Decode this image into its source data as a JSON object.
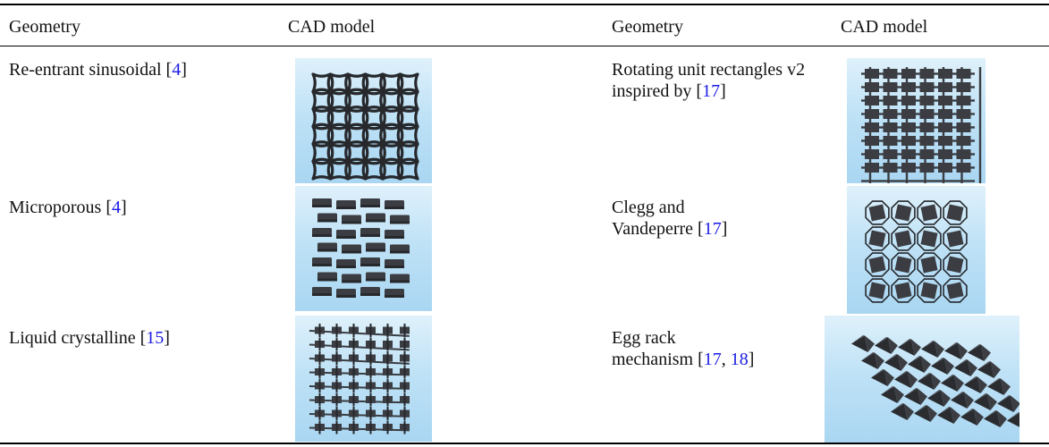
{
  "header": {
    "col1": "Geometry",
    "col2": "CAD model",
    "col3": "Geometry",
    "col4": "CAD model"
  },
  "rows": [
    {
      "left": {
        "name": "Re-entrant sinusoidal [",
        "cites": [
          "4"
        ],
        "end": "]",
        "image": "re-entrant-sinusoidal-lattice"
      },
      "right": {
        "name": "Rotating unit rectangles v2 inspired by [",
        "cites": [
          "17"
        ],
        "end": "]",
        "image": "rotating-rectangles-grid"
      }
    },
    {
      "left": {
        "name": "Microporous [",
        "cites": [
          "4"
        ],
        "end": "]",
        "image": "microporous-blocks"
      },
      "right": {
        "name": "Clegg and Vandeperre [",
        "cites": [
          "17"
        ],
        "end": "]",
        "image": "octagon-lattice"
      }
    },
    {
      "left": {
        "name": "Liquid crystalline [",
        "cites": [
          "15"
        ],
        "end": "]",
        "image": "liquid-crystalline-rods"
      },
      "right": {
        "name": "Egg rack mechanism [",
        "cites": [
          "17",
          "18"
        ],
        "end": "]",
        "image": "egg-rack-pyramids"
      }
    }
  ],
  "colors": {
    "citation": "#1a1ae6",
    "model": "#3b3d42",
    "background_top": "#dff1fb",
    "background_bottom": "#a9d6f2"
  }
}
